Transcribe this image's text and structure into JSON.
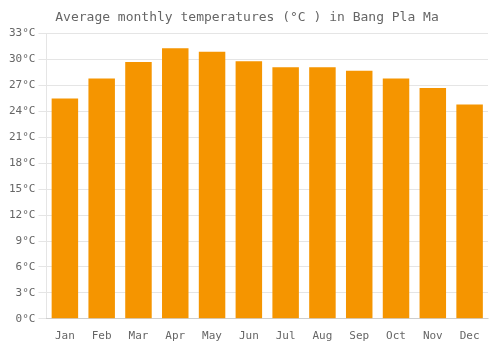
{
  "chart_data": {
    "type": "bar",
    "title": "Average monthly temperatures (°C ) in Bang Pla Ma",
    "categories": [
      "Jan",
      "Feb",
      "Mar",
      "Apr",
      "May",
      "Jun",
      "Jul",
      "Aug",
      "Sep",
      "Oct",
      "Nov",
      "Dec"
    ],
    "values": [
      25.5,
      27.8,
      29.7,
      31.3,
      30.9,
      29.8,
      29.1,
      29.1,
      28.7,
      27.8,
      26.7,
      24.8
    ],
    "color": "#F59500",
    "ylim": [
      0,
      33
    ],
    "yticks": [
      {
        "value": 0,
        "label": "0°C"
      },
      {
        "value": 3,
        "label": "3°C"
      },
      {
        "value": 6,
        "label": "6°C"
      },
      {
        "value": 9,
        "label": "9°C"
      },
      {
        "value": 12,
        "label": "12°C"
      },
      {
        "value": 15,
        "label": "15°C"
      },
      {
        "value": 18,
        "label": "18°C"
      },
      {
        "value": 21,
        "label": "21°C"
      },
      {
        "value": 24,
        "label": "24°C"
      },
      {
        "value": 27,
        "label": "27°C"
      },
      {
        "value": 30,
        "label": "30°C"
      },
      {
        "value": 33,
        "label": "33°C"
      }
    ],
    "grid": true
  }
}
